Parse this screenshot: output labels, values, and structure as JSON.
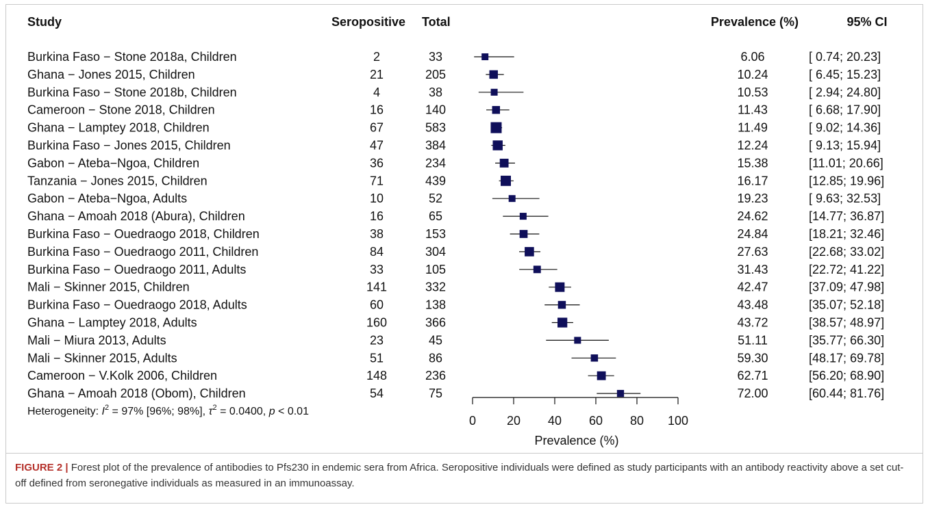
{
  "chart_data": {
    "type": "forest",
    "headers": {
      "study": "Study",
      "events": "Seropositive",
      "total": "Total",
      "estimate": "Prevalence (%)",
      "ci": "95% CI"
    },
    "xlabel": "Prevalence (%)",
    "xlim": [
      0,
      100
    ],
    "xticks": [
      0,
      20,
      40,
      60,
      80,
      100
    ],
    "marker_color": "#0f0f5a",
    "studies": [
      {
        "label": "Burkina Faso − Stone 2018a, Children",
        "events": "2",
        "total": "33",
        "est": 6.06,
        "lo": 0.74,
        "hi": 20.23,
        "est_text": "6.06",
        "ci_text": "[ 0.74; 20.23]"
      },
      {
        "label": "Ghana − Jones 2015, Children",
        "events": "21",
        "total": "205",
        "est": 10.24,
        "lo": 6.45,
        "hi": 15.23,
        "est_text": "10.24",
        "ci_text": "[ 6.45; 15.23]"
      },
      {
        "label": "Burkina Faso − Stone 2018b, Children",
        "events": "4",
        "total": "38",
        "est": 10.53,
        "lo": 2.94,
        "hi": 24.8,
        "est_text": "10.53",
        "ci_text": "[ 2.94; 24.80]"
      },
      {
        "label": "Cameroon − Stone 2018, Children",
        "events": "16",
        "total": "140",
        "est": 11.43,
        "lo": 6.68,
        "hi": 17.9,
        "est_text": "11.43",
        "ci_text": "[ 6.68; 17.90]"
      },
      {
        "label": "Ghana − Lamptey 2018, Children",
        "events": "67",
        "total": "583",
        "est": 11.49,
        "lo": 9.02,
        "hi": 14.36,
        "est_text": "11.49",
        "ci_text": "[ 9.02; 14.36]"
      },
      {
        "label": "Burkina Faso − Jones 2015, Children",
        "events": "47",
        "total": "384",
        "est": 12.24,
        "lo": 9.13,
        "hi": 15.94,
        "est_text": "12.24",
        "ci_text": "[ 9.13; 15.94]"
      },
      {
        "label": "Gabon − Ateba−Ngoa, Children",
        "events": "36",
        "total": "234",
        "est": 15.38,
        "lo": 11.01,
        "hi": 20.66,
        "est_text": "15.38",
        "ci_text": "[11.01; 20.66]"
      },
      {
        "label": "Tanzania − Jones 2015, Children",
        "events": "71",
        "total": "439",
        "est": 16.17,
        "lo": 12.85,
        "hi": 19.96,
        "est_text": "16.17",
        "ci_text": "[12.85; 19.96]"
      },
      {
        "label": "Gabon − Ateba−Ngoa, Adults",
        "events": "10",
        "total": "52",
        "est": 19.23,
        "lo": 9.63,
        "hi": 32.53,
        "est_text": "19.23",
        "ci_text": "[ 9.63; 32.53]"
      },
      {
        "label": "Ghana − Amoah 2018 (Abura), Children",
        "events": "16",
        "total": "65",
        "est": 24.62,
        "lo": 14.77,
        "hi": 36.87,
        "est_text": "24.62",
        "ci_text": "[14.77; 36.87]"
      },
      {
        "label": "Burkina Faso − Ouedraogo 2018, Children",
        "events": "38",
        "total": "153",
        "est": 24.84,
        "lo": 18.21,
        "hi": 32.46,
        "est_text": "24.84",
        "ci_text": "[18.21; 32.46]"
      },
      {
        "label": "Burkina Faso − Ouedraogo 2011, Children",
        "events": "84",
        "total": "304",
        "est": 27.63,
        "lo": 22.68,
        "hi": 33.02,
        "est_text": "27.63",
        "ci_text": "[22.68; 33.02]"
      },
      {
        "label": "Burkina Faso − Ouedraogo 2011, Adults",
        "events": "33",
        "total": "105",
        "est": 31.43,
        "lo": 22.72,
        "hi": 41.22,
        "est_text": "31.43",
        "ci_text": "[22.72; 41.22]"
      },
      {
        "label": "Mali − Skinner 2015, Children",
        "events": "141",
        "total": "332",
        "est": 42.47,
        "lo": 37.09,
        "hi": 47.98,
        "est_text": "42.47",
        "ci_text": "[37.09; 47.98]"
      },
      {
        "label": "Burkina Faso − Ouedraogo 2018, Adults",
        "events": "60",
        "total": "138",
        "est": 43.48,
        "lo": 35.07,
        "hi": 52.18,
        "est_text": "43.48",
        "ci_text": "[35.07; 52.18]"
      },
      {
        "label": "Ghana − Lamptey 2018, Adults",
        "events": "160",
        "total": "366",
        "est": 43.72,
        "lo": 38.57,
        "hi": 48.97,
        "est_text": "43.72",
        "ci_text": "[38.57; 48.97]"
      },
      {
        "label": "Mali − Miura 2013, Adults",
        "events": "23",
        "total": "45",
        "est": 51.11,
        "lo": 35.77,
        "hi": 66.3,
        "est_text": "51.11",
        "ci_text": "[35.77; 66.30]"
      },
      {
        "label": "Mali − Skinner 2015, Adults",
        "events": "51",
        "total": "86",
        "est": 59.3,
        "lo": 48.17,
        "hi": 69.78,
        "est_text": "59.30",
        "ci_text": "[48.17; 69.78]"
      },
      {
        "label": "Cameroon − V.Kolk 2006, Children",
        "events": "148",
        "total": "236",
        "est": 62.71,
        "lo": 56.2,
        "hi": 68.9,
        "est_text": "62.71",
        "ci_text": "[56.20; 68.90]"
      },
      {
        "label": "Ghana − Amoah 2018 (Obom), Children",
        "events": "54",
        "total": "75",
        "est": 72.0,
        "lo": 60.44,
        "hi": 81.76,
        "est_text": "72.00",
        "ci_text": "[60.44; 81.76]"
      }
    ],
    "heterogeneity": {
      "prefix": "Heterogeneity: ",
      "i2_sym": "I",
      "i2_val": " = 97% [96%; 98%], ",
      "tau2_sym": "τ",
      "tau2_val": " = 0.0400, ",
      "p_sym": "p",
      "p_val": " < 0.01"
    }
  },
  "caption": {
    "label": "FIGURE 2 |",
    "text": " Forest plot of the prevalence of antibodies to Pfs230 in endemic sera from Africa. Seropositive individuals were defined as study participants with an antibody reactivity above a set cut-off defined from seronegative individuals as measured in an immunoassay."
  }
}
